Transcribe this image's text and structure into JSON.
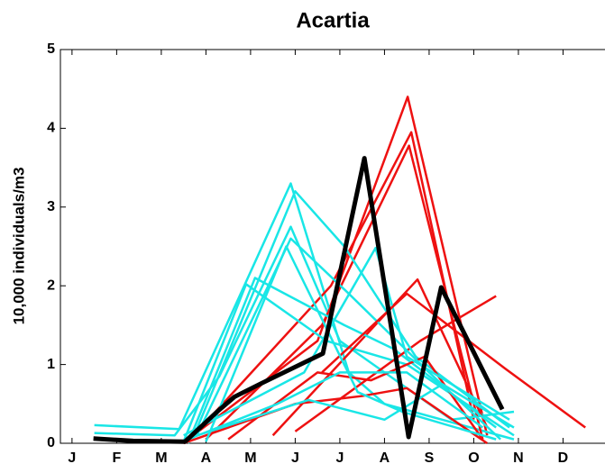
{
  "chart_data": {
    "type": "line",
    "title": "Acartia",
    "ylabel": "10,000 individuals/m3",
    "xlim": [
      0.74,
      12.94
    ],
    "ylim": [
      0,
      5
    ],
    "yticks": [
      0,
      1,
      2,
      3,
      4,
      5
    ],
    "xticks": [
      {
        "value": 1,
        "label": "J"
      },
      {
        "value": 2,
        "label": "F"
      },
      {
        "value": 3,
        "label": "M"
      },
      {
        "value": 4,
        "label": "A"
      },
      {
        "value": 5,
        "label": "M"
      },
      {
        "value": 6,
        "label": "J"
      },
      {
        "value": 7,
        "label": "J"
      },
      {
        "value": 8,
        "label": "A"
      },
      {
        "value": 9,
        "label": "S"
      },
      {
        "value": 10,
        "label": "O"
      },
      {
        "value": 11,
        "label": "N"
      },
      {
        "value": 12,
        "label": "D"
      }
    ],
    "series": [
      {
        "color": "#ee1111",
        "x": [
          3.53,
          6.5,
          8.52,
          10.3
        ],
        "values": [
          0.02,
          1.3,
          4.4,
          0.1
        ]
      },
      {
        "color": "#19e6e6",
        "x": [
          1.5,
          3.4,
          5.9,
          7.2,
          8.0,
          10.9
        ],
        "values": [
          0.23,
          0.18,
          3.3,
          0.9,
          0.5,
          0.05
        ]
      },
      {
        "color": "#ee1111",
        "x": [
          3.6,
          6.8,
          8.6,
          10.0
        ],
        "values": [
          0.02,
          2.0,
          3.95,
          0.3
        ]
      },
      {
        "color": "#19e6e6",
        "x": [
          1.5,
          3.3,
          4.3,
          5.9,
          7.0,
          9.5,
          10.9
        ],
        "values": [
          0.13,
          0.1,
          0.85,
          2.75,
          1.3,
          0.3,
          0.4
        ]
      },
      {
        "color": "#ee1111",
        "x": [
          4.0,
          6.6,
          8.55,
          10.2
        ],
        "values": [
          0.05,
          1.5,
          3.78,
          0.05
        ]
      },
      {
        "color": "#19e6e6",
        "x": [
          3.5,
          4.9,
          6.7,
          8.5,
          10.9
        ],
        "values": [
          0.02,
          2.02,
          1.3,
          1.0,
          0.1
        ]
      },
      {
        "color": "#ee1111",
        "x": [
          5.5,
          8.74,
          10.3
        ],
        "values": [
          0.1,
          2.08,
          0.2
        ]
      },
      {
        "color": "#19e6e6",
        "x": [
          3.6,
          5.1,
          7.1,
          8.2,
          10.5
        ],
        "values": [
          0.0,
          2.1,
          1.5,
          1.2,
          0.2
        ]
      },
      {
        "color": "#ee1111",
        "x": [
          6.0,
          8.8,
          10.5
        ],
        "values": [
          0.15,
          1.3,
          1.87
        ]
      },
      {
        "color": "#19e6e6",
        "x": [
          3.7,
          6.0,
          7.1,
          8.7,
          10.8
        ],
        "values": [
          0.05,
          3.2,
          2.5,
          1.1,
          0.2
        ]
      },
      {
        "color": "#ee1111",
        "x": [
          4.5,
          6.5,
          7.7,
          8.9,
          10.2
        ],
        "values": [
          0.05,
          0.9,
          0.8,
          1.1,
          0.05
        ]
      },
      {
        "color": "#19e6e6",
        "x": [
          3.8,
          5.9,
          7.2,
          9.0,
          10.6
        ],
        "values": [
          0.1,
          2.6,
          1.9,
          0.9,
          0.05
        ]
      },
      {
        "color": "#ee1111",
        "x": [
          3.5,
          6.0,
          7.5,
          8.5,
          10.3
        ],
        "values": [
          0.0,
          0.5,
          0.6,
          0.7,
          0.0
        ]
      },
      {
        "color": "#19e6e6",
        "x": [
          3.5,
          6.2,
          7.8,
          8.5,
          10.8
        ],
        "values": [
          0.1,
          0.9,
          2.48,
          1.1,
          0.3
        ]
      },
      {
        "color": "#ee1111",
        "x": [
          6.6,
          8.5,
          10.7,
          12.5
        ],
        "values": [
          0.9,
          1.9,
          0.95,
          0.2
        ]
      },
      {
        "color": "#19e6e6",
        "x": [
          3.6,
          5.6,
          7.0,
          8.5,
          10.2
        ],
        "values": [
          0.05,
          0.5,
          0.9,
          0.9,
          0.2
        ]
      },
      {
        "color": "#19e6e6",
        "x": [
          3.8,
          6.3,
          8.0,
          9.3,
          10.9
        ],
        "values": [
          0.1,
          0.55,
          0.3,
          0.75,
          0.2
        ]
      },
      {
        "color": "#19e6e6",
        "x": [
          4.0,
          5.8,
          7.4,
          8.4,
          10.5
        ],
        "values": [
          0.02,
          2.5,
          0.65,
          0.4,
          0.05
        ]
      },
      {
        "color": "#000000",
        "width": 5,
        "x": [
          1.48,
          2.37,
          3.53,
          4.25,
          4.64,
          5.24,
          6.62,
          7.55,
          8.54,
          9.27,
          10.64
        ],
        "values": [
          0.06,
          0.03,
          0.02,
          0.4,
          0.59,
          0.76,
          1.14,
          3.62,
          0.08,
          1.98,
          0.43
        ]
      }
    ]
  }
}
